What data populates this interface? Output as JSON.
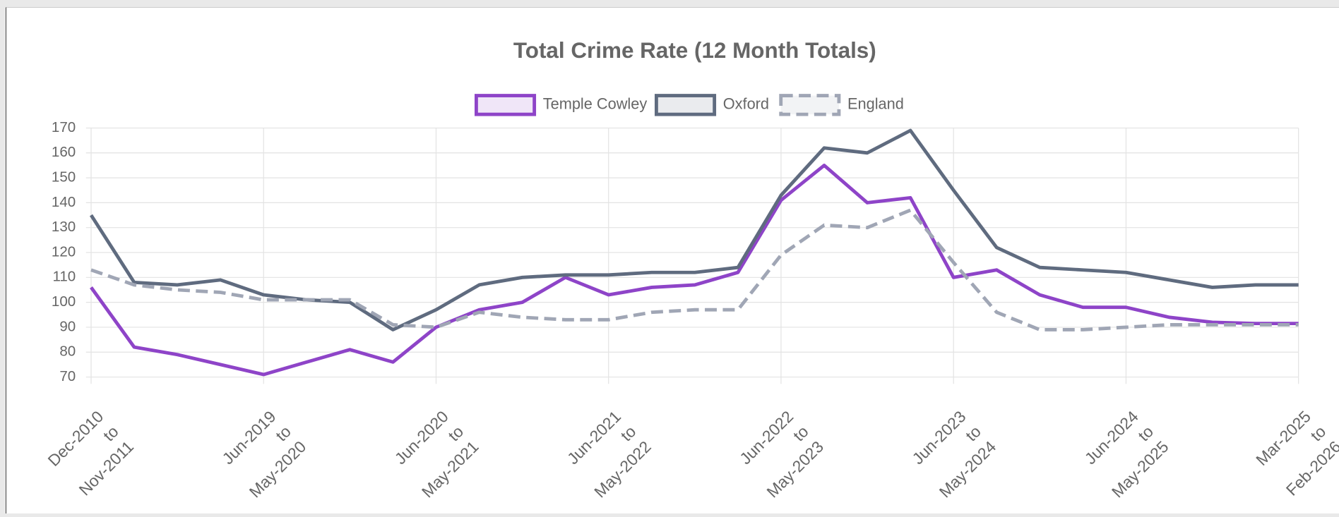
{
  "chart_data": {
    "type": "line",
    "title": "Total Crime Rate (12 Month Totals)",
    "categories": [
      [
        "Dec-2010",
        "to",
        "Nov-2011"
      ],
      null,
      null,
      null,
      [
        "Jun-2019",
        "to",
        "May-2020"
      ],
      null,
      null,
      null,
      [
        "Jun-2020",
        "to",
        "May-2021"
      ],
      null,
      null,
      null,
      [
        "Jun-2021",
        "to",
        "May-2022"
      ],
      null,
      null,
      null,
      [
        "Jun-2022",
        "to",
        "May-2023"
      ],
      null,
      null,
      null,
      [
        "Jun-2023",
        "to",
        "May-2024"
      ],
      null,
      null,
      null,
      [
        "Jun-2024",
        "to",
        "May-2025"
      ],
      null,
      null,
      null,
      [
        "Mar-2025",
        "to",
        "Feb-2026"
      ]
    ],
    "series": [
      {
        "name": "Temple Cowley",
        "color": "#8e44c8",
        "dashed": false,
        "values": [
          106,
          82,
          79,
          75,
          71,
          76,
          81,
          76,
          90,
          97,
          100,
          110,
          103,
          106,
          107,
          112,
          141,
          155,
          140,
          142,
          110,
          113,
          103,
          98,
          98,
          94,
          92,
          91.5,
          91.5
        ]
      },
      {
        "name": "Oxford",
        "color": "#5f6b7f",
        "dashed": false,
        "values": [
          135,
          108,
          107,
          109,
          103,
          101,
          100,
          89,
          97,
          107,
          110,
          111,
          111,
          112,
          112,
          114,
          143,
          162,
          160,
          169,
          145,
          122,
          114,
          113,
          112,
          109,
          106,
          107,
          107
        ]
      },
      {
        "name": "England",
        "color": "#a0a6b5",
        "dashed": true,
        "values": [
          113,
          107,
          105,
          104,
          101,
          101,
          101,
          91,
          90,
          96,
          94,
          93,
          93,
          96,
          97,
          97,
          119,
          131,
          130,
          137,
          116,
          96,
          89,
          89,
          90,
          91,
          91,
          91,
          91
        ]
      }
    ],
    "ylim": [
      70,
      170
    ],
    "yticks": [
      70,
      80,
      90,
      100,
      110,
      120,
      130,
      140,
      150,
      160,
      170
    ],
    "grid": true
  }
}
